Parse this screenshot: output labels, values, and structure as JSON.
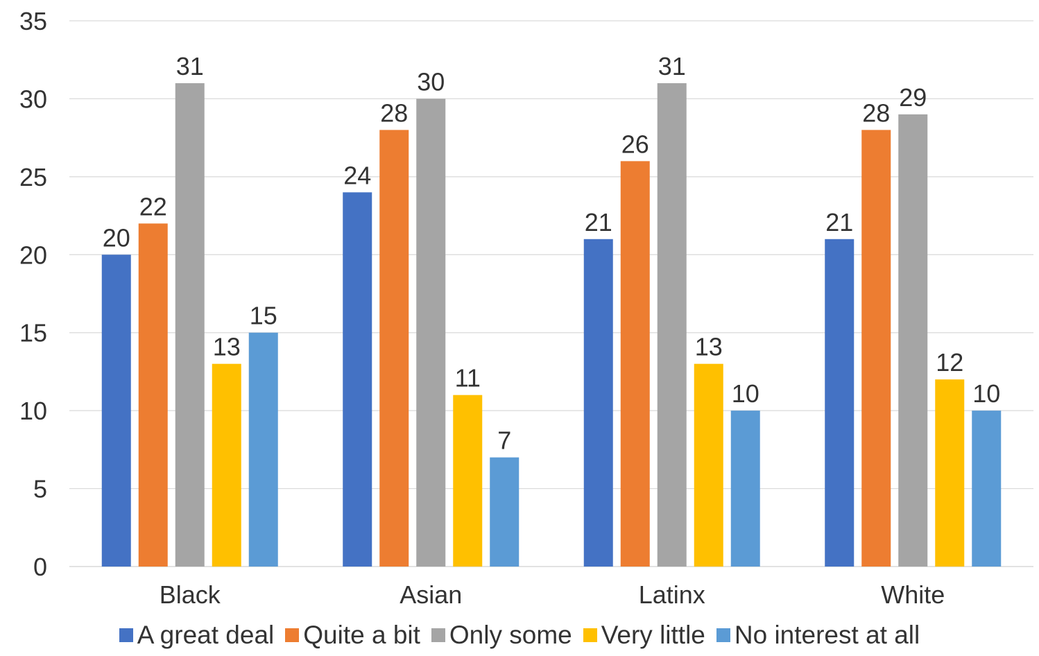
{
  "chart_data": {
    "type": "bar",
    "categories": [
      "Black",
      "Asian",
      "Latinx",
      "White"
    ],
    "series": [
      {
        "name": "A great deal",
        "values": [
          20,
          24,
          21,
          21
        ],
        "color": "#4472C4"
      },
      {
        "name": "Quite a bit",
        "values": [
          22,
          28,
          26,
          28
        ],
        "color": "#ED7D31"
      },
      {
        "name": "Only some",
        "values": [
          31,
          30,
          31,
          29
        ],
        "color": "#A5A5A5"
      },
      {
        "name": "Very little",
        "values": [
          13,
          11,
          13,
          12
        ],
        "color": "#FFC000"
      },
      {
        "name": "No interest at all",
        "values": [
          15,
          7,
          10,
          10
        ],
        "color": "#5B9BD5"
      }
    ],
    "yticks": [
      "0",
      "5",
      "10",
      "15",
      "20",
      "25",
      "30",
      "35"
    ],
    "ylim": [
      0,
      35
    ],
    "grid": true,
    "legend_position": "bottom",
    "gridline_color": "#D9D9D9"
  }
}
